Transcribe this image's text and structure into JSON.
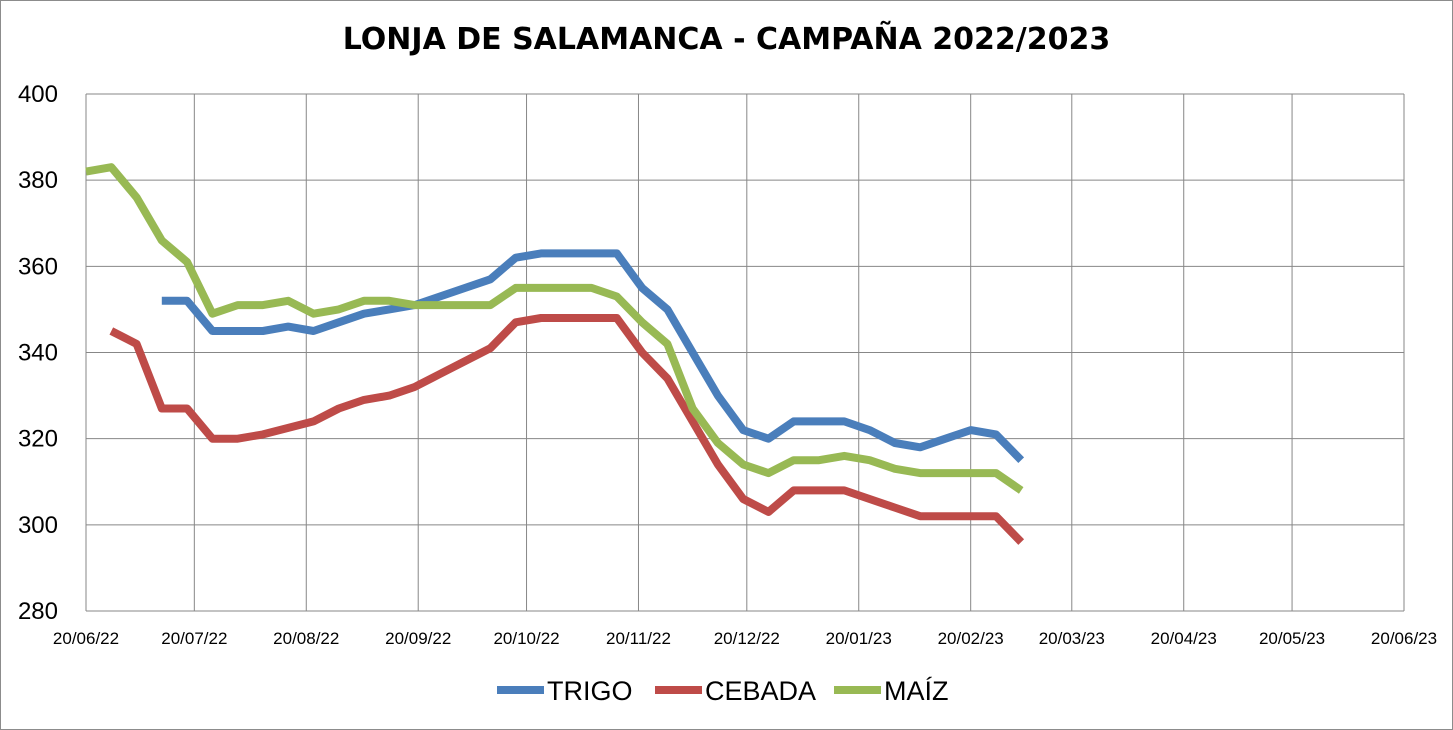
{
  "chart_data": {
    "type": "line",
    "title": "LONJA DE SALAMANCA - CAMPAÑA 2022/2023",
    "xlabel": "",
    "ylabel": "",
    "ylim": [
      280,
      400
    ],
    "yticks": [
      280,
      300,
      320,
      340,
      360,
      380,
      400
    ],
    "xlim": [
      "2022-06-20",
      "2023-06-20"
    ],
    "xticks": [
      {
        "date": "2022-06-20",
        "label": "20/06/22"
      },
      {
        "date": "2022-07-20",
        "label": "20/07/22"
      },
      {
        "date": "2022-08-20",
        "label": "20/08/22"
      },
      {
        "date": "2022-09-20",
        "label": "20/09/22"
      },
      {
        "date": "2022-10-20",
        "label": "20/10/22"
      },
      {
        "date": "2022-11-20",
        "label": "20/11/22"
      },
      {
        "date": "2022-12-20",
        "label": "20/12/22"
      },
      {
        "date": "2023-01-20",
        "label": "20/01/23"
      },
      {
        "date": "2023-02-20",
        "label": "20/02/23"
      },
      {
        "date": "2023-03-20",
        "label": "20/03/23"
      },
      {
        "date": "2023-04-20",
        "label": "20/04/23"
      },
      {
        "date": "2023-05-20",
        "label": "20/05/23"
      },
      {
        "date": "2023-06-20",
        "label": "20/06/23"
      }
    ],
    "grid": true,
    "legend_position": "bottom",
    "series": [
      {
        "name": "TRIGO",
        "color": "#4a7ebb",
        "points": [
          [
            "2022-07-11",
            352
          ],
          [
            "2022-07-18",
            352
          ],
          [
            "2022-07-25",
            345
          ],
          [
            "2022-08-01",
            345
          ],
          [
            "2022-08-08",
            345
          ],
          [
            "2022-08-15",
            346
          ],
          [
            "2022-08-22",
            345
          ],
          [
            "2022-08-29",
            347
          ],
          [
            "2022-09-05",
            349
          ],
          [
            "2022-09-12",
            350
          ],
          [
            "2022-09-19",
            351
          ],
          [
            "2022-09-26",
            353
          ],
          [
            "2022-10-03",
            355
          ],
          [
            "2022-10-10",
            357
          ],
          [
            "2022-10-17",
            362
          ],
          [
            "2022-10-24",
            363
          ],
          [
            "2022-10-31",
            363
          ],
          [
            "2022-11-07",
            363
          ],
          [
            "2022-11-14",
            363
          ],
          [
            "2022-11-21",
            355
          ],
          [
            "2022-11-28",
            350
          ],
          [
            "2022-12-05",
            340
          ],
          [
            "2022-12-12",
            330
          ],
          [
            "2022-12-19",
            322
          ],
          [
            "2022-12-26",
            320
          ],
          [
            "2023-01-02",
            324
          ],
          [
            "2023-01-09",
            324
          ],
          [
            "2023-01-16",
            324
          ],
          [
            "2023-01-23",
            322
          ],
          [
            "2023-01-30",
            319
          ],
          [
            "2023-02-06",
            318
          ],
          [
            "2023-02-13",
            320
          ],
          [
            "2023-02-20",
            322
          ],
          [
            "2023-02-27",
            321
          ],
          [
            "2023-03-06",
            315
          ]
        ]
      },
      {
        "name": "CEBADA",
        "color": "#be4b48",
        "points": [
          [
            "2022-06-27",
            345
          ],
          [
            "2022-07-04",
            342
          ],
          [
            "2022-07-11",
            327
          ],
          [
            "2022-07-18",
            327
          ],
          [
            "2022-07-25",
            320
          ],
          [
            "2022-08-01",
            320
          ],
          [
            "2022-08-08",
            321
          ],
          [
            "2022-08-15",
            322.5
          ],
          [
            "2022-08-22",
            324
          ],
          [
            "2022-08-29",
            327
          ],
          [
            "2022-09-05",
            329
          ],
          [
            "2022-09-12",
            330
          ],
          [
            "2022-09-19",
            332
          ],
          [
            "2022-09-26",
            335
          ],
          [
            "2022-10-03",
            338
          ],
          [
            "2022-10-10",
            341
          ],
          [
            "2022-10-17",
            347
          ],
          [
            "2022-10-24",
            348
          ],
          [
            "2022-10-31",
            348
          ],
          [
            "2022-11-07",
            348
          ],
          [
            "2022-11-14",
            348
          ],
          [
            "2022-11-21",
            340
          ],
          [
            "2022-11-28",
            334
          ],
          [
            "2022-12-05",
            324
          ],
          [
            "2022-12-12",
            314
          ],
          [
            "2022-12-19",
            306
          ],
          [
            "2022-12-26",
            303
          ],
          [
            "2023-01-02",
            308
          ],
          [
            "2023-01-09",
            308
          ],
          [
            "2023-01-16",
            308
          ],
          [
            "2023-01-23",
            306
          ],
          [
            "2023-01-30",
            304
          ],
          [
            "2023-02-06",
            302
          ],
          [
            "2023-02-13",
            302
          ],
          [
            "2023-02-20",
            302
          ],
          [
            "2023-02-27",
            302
          ],
          [
            "2023-03-06",
            296
          ]
        ]
      },
      {
        "name": "MAÍZ",
        "color": "#98b954",
        "points": [
          [
            "2022-06-20",
            382
          ],
          [
            "2022-06-27",
            383
          ],
          [
            "2022-07-04",
            376
          ],
          [
            "2022-07-11",
            366
          ],
          [
            "2022-07-18",
            361
          ],
          [
            "2022-07-25",
            349
          ],
          [
            "2022-08-01",
            351
          ],
          [
            "2022-08-08",
            351
          ],
          [
            "2022-08-15",
            352
          ],
          [
            "2022-08-22",
            349
          ],
          [
            "2022-08-29",
            350
          ],
          [
            "2022-09-05",
            352
          ],
          [
            "2022-09-12",
            352
          ],
          [
            "2022-09-19",
            351
          ],
          [
            "2022-09-26",
            351
          ],
          [
            "2022-10-03",
            351
          ],
          [
            "2022-10-10",
            351
          ],
          [
            "2022-10-17",
            355
          ],
          [
            "2022-10-24",
            355
          ],
          [
            "2022-10-31",
            355
          ],
          [
            "2022-11-07",
            355
          ],
          [
            "2022-11-14",
            353
          ],
          [
            "2022-11-21",
            347
          ],
          [
            "2022-11-28",
            342
          ],
          [
            "2022-12-05",
            327
          ],
          [
            "2022-12-12",
            319
          ],
          [
            "2022-12-19",
            314
          ],
          [
            "2022-12-26",
            312
          ],
          [
            "2023-01-02",
            315
          ],
          [
            "2023-01-09",
            315
          ],
          [
            "2023-01-16",
            316
          ],
          [
            "2023-01-23",
            315
          ],
          [
            "2023-01-30",
            313
          ],
          [
            "2023-02-06",
            312
          ],
          [
            "2023-02-13",
            312
          ],
          [
            "2023-02-20",
            312
          ],
          [
            "2023-02-27",
            312
          ],
          [
            "2023-03-06",
            308
          ]
        ]
      }
    ]
  }
}
